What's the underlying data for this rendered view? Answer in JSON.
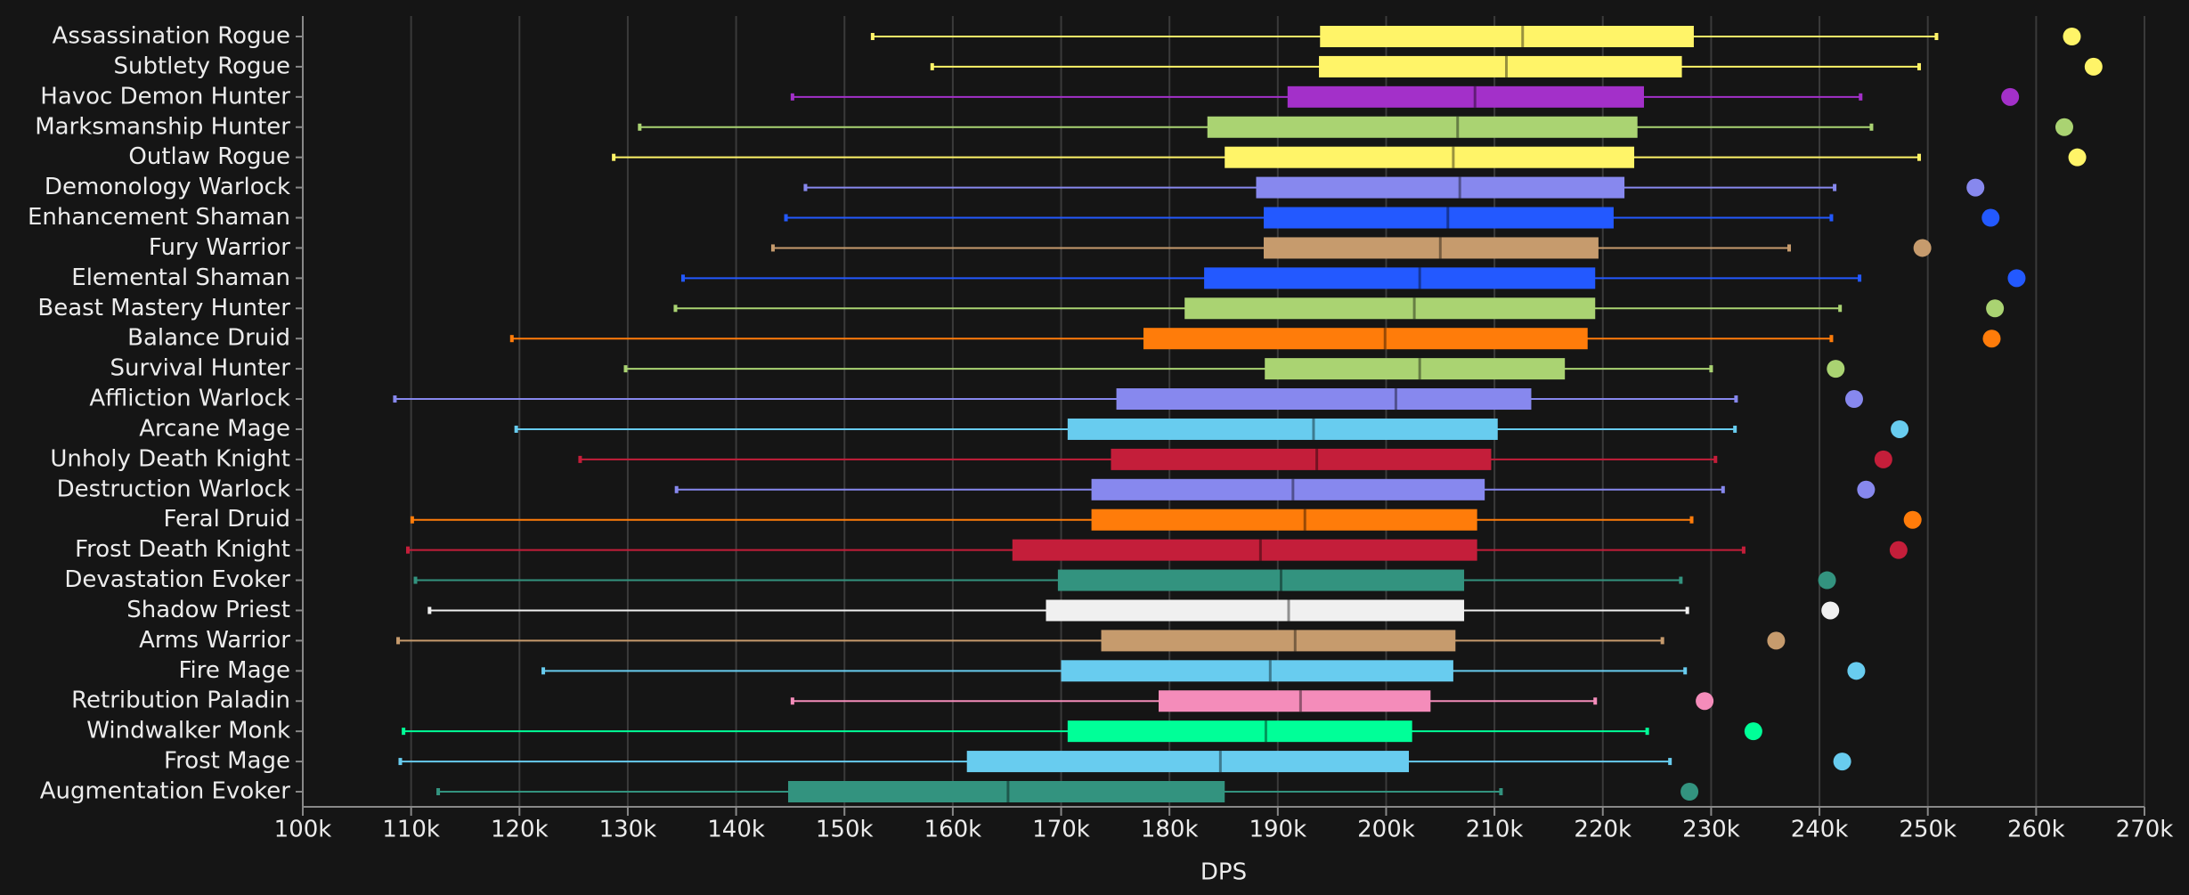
{
  "chart_data": {
    "type": "box",
    "xlabel": "DPS",
    "grid": true,
    "xlim": [
      100000,
      270000
    ],
    "xticks": [
      {
        "value": 100000,
        "label": "100k"
      },
      {
        "value": 110000,
        "label": "110k"
      },
      {
        "value": 120000,
        "label": "120k"
      },
      {
        "value": 130000,
        "label": "130k"
      },
      {
        "value": 140000,
        "label": "140k"
      },
      {
        "value": 150000,
        "label": "150k"
      },
      {
        "value": 160000,
        "label": "160k"
      },
      {
        "value": 170000,
        "label": "170k"
      },
      {
        "value": 180000,
        "label": "180k"
      },
      {
        "value": 190000,
        "label": "190k"
      },
      {
        "value": 200000,
        "label": "200k"
      },
      {
        "value": 210000,
        "label": "210k"
      },
      {
        "value": 220000,
        "label": "220k"
      },
      {
        "value": 230000,
        "label": "230k"
      },
      {
        "value": 240000,
        "label": "240k"
      },
      {
        "value": 250000,
        "label": "250k"
      },
      {
        "value": 260000,
        "label": "260k"
      },
      {
        "value": 270000,
        "label": "270k"
      }
    ],
    "categories": [
      "Assassination Rogue",
      "Subtlety Rogue",
      "Havoc Demon Hunter",
      "Marksmanship Hunter",
      "Outlaw Rogue",
      "Demonology Warlock",
      "Enhancement Shaman",
      "Fury Warrior",
      "Elemental Shaman",
      "Beast Mastery Hunter",
      "Balance Druid",
      "Survival Hunter",
      "Affliction Warlock",
      "Arcane Mage",
      "Unholy Death Knight",
      "Destruction Warlock",
      "Feral Druid",
      "Frost Death Knight",
      "Devastation Evoker",
      "Shadow Priest",
      "Arms Warrior",
      "Fire Mage",
      "Retribution Paladin",
      "Windwalker Monk",
      "Frost Mage",
      "Augmentation Evoker"
    ],
    "boxes": [
      {
        "color": "#fff468",
        "low": 152600,
        "q1": 193900,
        "median": 212600,
        "q3": 228400,
        "high": 250800,
        "top": 263300
      },
      {
        "color": "#fff468",
        "low": 158100,
        "q1": 193800,
        "median": 211100,
        "q3": 227300,
        "high": 249200,
        "top": 265300
      },
      {
        "color": "#a330c9",
        "low": 145200,
        "q1": 190900,
        "median": 208200,
        "q3": 223800,
        "high": 243800,
        "top": 257600
      },
      {
        "color": "#aad372",
        "low": 131100,
        "q1": 183500,
        "median": 206600,
        "q3": 223200,
        "high": 244800,
        "top": 262600
      },
      {
        "color": "#fff468",
        "low": 128700,
        "q1": 185100,
        "median": 206200,
        "q3": 222900,
        "high": 249200,
        "top": 263800
      },
      {
        "color": "#8788ee",
        "low": 146400,
        "q1": 188000,
        "median": 206800,
        "q3": 222000,
        "high": 241400,
        "top": 254400
      },
      {
        "color": "#2359ff",
        "low": 144600,
        "q1": 188700,
        "median": 205700,
        "q3": 221000,
        "high": 241100,
        "top": 255800
      },
      {
        "color": "#c69b6d",
        "low": 143400,
        "q1": 188700,
        "median": 205000,
        "q3": 219600,
        "high": 237200,
        "top": 249500
      },
      {
        "color": "#2359ff",
        "low": 135100,
        "q1": 183200,
        "median": 203100,
        "q3": 219300,
        "high": 243700,
        "top": 258200
      },
      {
        "color": "#aad372",
        "low": 134400,
        "q1": 181400,
        "median": 202600,
        "q3": 219300,
        "high": 241900,
        "top": 256200
      },
      {
        "color": "#ff7c0a",
        "low": 119300,
        "q1": 177600,
        "median": 199900,
        "q3": 218600,
        "high": 241100,
        "top": 255900
      },
      {
        "color": "#aad372",
        "low": 129800,
        "q1": 188800,
        "median": 203100,
        "q3": 216500,
        "high": 230000,
        "top": 241500
      },
      {
        "color": "#8788ee",
        "low": 108500,
        "q1": 175100,
        "median": 200900,
        "q3": 213400,
        "high": 232300,
        "top": 243200
      },
      {
        "color": "#68ccef",
        "low": 119700,
        "q1": 170600,
        "median": 193300,
        "q3": 210300,
        "high": 232200,
        "top": 247400
      },
      {
        "color": "#c41e3a",
        "low": 125600,
        "q1": 174600,
        "median": 193600,
        "q3": 209700,
        "high": 230400,
        "top": 245900
      },
      {
        "color": "#8788ee",
        "low": 134500,
        "q1": 172800,
        "median": 191400,
        "q3": 209100,
        "high": 231100,
        "top": 244300
      },
      {
        "color": "#ff7c0a",
        "low": 110100,
        "q1": 172800,
        "median": 192500,
        "q3": 208400,
        "high": 228200,
        "top": 248600
      },
      {
        "color": "#c41e3a",
        "low": 109700,
        "q1": 165500,
        "median": 188400,
        "q3": 208400,
        "high": 233000,
        "top": 247300
      },
      {
        "color": "#33937f",
        "low": 110400,
        "q1": 169700,
        "median": 190300,
        "q3": 207200,
        "high": 227200,
        "top": 240700
      },
      {
        "color": "#f0f0f0",
        "low": 111700,
        "q1": 168600,
        "median": 191000,
        "q3": 207200,
        "high": 227800,
        "top": 241000
      },
      {
        "color": "#c69b6d",
        "low": 108800,
        "q1": 173700,
        "median": 191600,
        "q3": 206400,
        "high": 225500,
        "top": 236000
      },
      {
        "color": "#68ccef",
        "low": 122200,
        "q1": 170000,
        "median": 189300,
        "q3": 206200,
        "high": 227600,
        "top": 243400
      },
      {
        "color": "#f48cba",
        "low": 145200,
        "q1": 179000,
        "median": 192100,
        "q3": 204100,
        "high": 219300,
        "top": 229400
      },
      {
        "color": "#00ff98",
        "low": 109300,
        "q1": 170600,
        "median": 188900,
        "q3": 202400,
        "high": 224100,
        "top": 233900
      },
      {
        "color": "#68ccef",
        "low": 109000,
        "q1": 161300,
        "median": 184700,
        "q3": 202100,
        "high": 226200,
        "top": 242100
      },
      {
        "color": "#33937f",
        "low": 112500,
        "q1": 144800,
        "median": 165100,
        "q3": 185100,
        "high": 210600,
        "top": 228000
      }
    ]
  }
}
